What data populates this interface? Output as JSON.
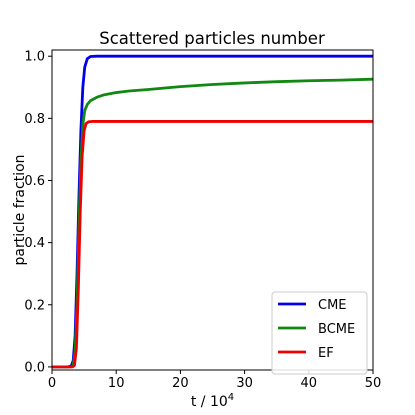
{
  "chart_data": {
    "type": "line",
    "title": "Scattered particles number",
    "xlabel": "t / 10",
    "xlabel_exponent": "4",
    "ylabel": "particle fraction",
    "xlim": [
      0,
      50
    ],
    "ylim": [
      -0.01,
      1.02
    ],
    "xticks": [
      0,
      10,
      20,
      30,
      40,
      50
    ],
    "xtick_labels": [
      "0",
      "10",
      "20",
      "30",
      "40",
      "50"
    ],
    "yticks": [
      0.0,
      0.2,
      0.4,
      0.6,
      0.8,
      1.0
    ],
    "ytick_labels": [
      "0.0",
      "0.2",
      "0.4",
      "0.6",
      "0.8",
      "1.0"
    ],
    "grid": false,
    "legend_position": "bottom-right",
    "series": [
      {
        "name": "CME",
        "color": "#0000ee",
        "points": [
          [
            0,
            0
          ],
          [
            2.5,
            0
          ],
          [
            3.0,
            0.003
          ],
          [
            3.3,
            0.02
          ],
          [
            3.6,
            0.1
          ],
          [
            3.9,
            0.3
          ],
          [
            4.2,
            0.55
          ],
          [
            4.5,
            0.76
          ],
          [
            4.8,
            0.9
          ],
          [
            5.1,
            0.965
          ],
          [
            5.5,
            0.992
          ],
          [
            6.0,
            0.999
          ],
          [
            7,
            1.0
          ],
          [
            10,
            1.0
          ],
          [
            20,
            1.0
          ],
          [
            30,
            1.0
          ],
          [
            40,
            1.0
          ],
          [
            50,
            1.0
          ]
        ]
      },
      {
        "name": "BCME",
        "color": "#118811",
        "points": [
          [
            0,
            0
          ],
          [
            3.0,
            0
          ],
          [
            3.3,
            0.005
          ],
          [
            3.6,
            0.05
          ],
          [
            3.9,
            0.2
          ],
          [
            4.2,
            0.45
          ],
          [
            4.5,
            0.66
          ],
          [
            4.8,
            0.78
          ],
          [
            5.1,
            0.825
          ],
          [
            5.5,
            0.845
          ],
          [
            6,
            0.857
          ],
          [
            7,
            0.868
          ],
          [
            8,
            0.875
          ],
          [
            10,
            0.883
          ],
          [
            12,
            0.888
          ],
          [
            15,
            0.893
          ],
          [
            20,
            0.902
          ],
          [
            25,
            0.909
          ],
          [
            30,
            0.914
          ],
          [
            35,
            0.918
          ],
          [
            40,
            0.921
          ],
          [
            45,
            0.923
          ],
          [
            50,
            0.926
          ]
        ]
      },
      {
        "name": "EF",
        "color": "#ee0000",
        "points": [
          [
            0,
            0
          ],
          [
            3.2,
            0
          ],
          [
            3.5,
            0.005
          ],
          [
            3.8,
            0.06
          ],
          [
            4.1,
            0.25
          ],
          [
            4.4,
            0.5
          ],
          [
            4.7,
            0.68
          ],
          [
            5.0,
            0.76
          ],
          [
            5.3,
            0.783
          ],
          [
            5.7,
            0.789
          ],
          [
            6.2,
            0.79
          ],
          [
            10,
            0.79
          ],
          [
            20,
            0.79
          ],
          [
            30,
            0.79
          ],
          [
            40,
            0.79
          ],
          [
            50,
            0.79
          ]
        ]
      }
    ]
  }
}
